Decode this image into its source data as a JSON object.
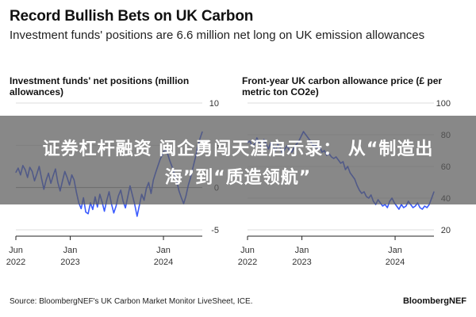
{
  "title": "Record Bullish Bets on UK Carbon",
  "subtitle": "Investment funds' positions are 6.6 million net long on UK emission allowances",
  "source": "Source: BloombergNEF's UK Carbon Market Monitor LiveSheet, ICE.",
  "brand": "BloombergNEF",
  "banner": {
    "line1": "证券杠杆融资 闽企勇闯天涯启示录： 从“制造出",
    "line2": "海”到“质造领航”"
  },
  "colors": {
    "line": "#3b5bff",
    "axis": "#222222",
    "grid": "#dddddd",
    "zero": "#999999",
    "banner": "#5a5a5a"
  },
  "chart_data": [
    {
      "type": "line",
      "title": "Investment funds' net positions (million allowances)",
      "ylim": [
        -5,
        10
      ],
      "yticks": [
        10,
        5,
        0,
        -5
      ],
      "xticks": [
        {
          "t": 0,
          "lines": [
            "Jun",
            "2022"
          ]
        },
        {
          "t": 7,
          "lines": [
            "Jan",
            "2023"
          ]
        },
        {
          "t": 19,
          "lines": [
            "Jan",
            "2024"
          ]
        }
      ],
      "x": [
        0,
        0.3,
        0.6,
        0.9,
        1.2,
        1.5,
        1.8,
        2.1,
        2.4,
        2.7,
        3,
        3.3,
        3.6,
        3.9,
        4.2,
        4.5,
        4.8,
        5.1,
        5.4,
        5.7,
        6,
        6.3,
        6.6,
        6.9,
        7.2,
        7.5,
        7.8,
        8.1,
        8.4,
        8.7,
        9,
        9.3,
        9.6,
        9.9,
        10.2,
        10.5,
        10.8,
        11.1,
        11.4,
        11.7,
        12,
        12.3,
        12.6,
        12.9,
        13.2,
        13.5,
        13.8,
        14.1,
        14.4,
        14.7,
        15,
        15.3,
        15.6,
        15.9,
        16.2,
        16.5,
        16.8,
        17.1,
        17.4,
        17.7,
        18,
        18.3,
        18.6,
        18.9,
        19.2,
        19.5,
        19.8,
        20.1,
        20.4,
        20.7,
        21,
        21.3,
        21.6,
        21.9,
        22.2,
        22.5,
        22.8,
        23.1,
        23.4,
        23.7,
        24
      ],
      "values": [
        1.8,
        2.3,
        1.5,
        2.6,
        2.1,
        1.2,
        2.4,
        1.9,
        0.8,
        1.6,
        2.5,
        1.1,
        -0.2,
        0.9,
        1.7,
        0.5,
        1.4,
        2.2,
        0.6,
        -0.4,
        0.8,
        1.9,
        1.2,
        0.3,
        1.5,
        0.9,
        -0.6,
        -1.8,
        -2.5,
        -1.2,
        -2.9,
        -3.1,
        -1.8,
        -2.6,
        -1.1,
        -2.3,
        -0.8,
        -1.7,
        -2.8,
        -1.5,
        -0.5,
        -1.9,
        -3.0,
        -2.2,
        -1.0,
        -0.3,
        -1.6,
        -2.4,
        -1.1,
        0.2,
        -0.9,
        -2.0,
        -3.4,
        -2.1,
        -0.8,
        -1.5,
        -0.1,
        0.6,
        -0.7,
        0.9,
        1.8,
        2.6,
        3.4,
        3.9,
        4.6,
        4.1,
        3.2,
        2.5,
        1.6,
        0.8,
        -0.4,
        -1.2,
        -1.9,
        -1.0,
        0.3,
        1.2,
        2.4,
        3.5,
        4.8,
        5.8,
        6.6
      ]
    },
    {
      "type": "line",
      "title": "Front-year UK carbon allowance price (£ per metric ton CO2e)",
      "ylim": [
        20,
        100
      ],
      "yticks": [
        100,
        80,
        60,
        40,
        20
      ],
      "xticks": [
        {
          "t": 0,
          "lines": [
            "Jun",
            "2022"
          ]
        },
        {
          "t": 7,
          "lines": [
            "Jan",
            "2023"
          ]
        },
        {
          "t": 19,
          "lines": [
            "Jan",
            "2024"
          ]
        }
      ],
      "x": [
        0,
        0.3,
        0.6,
        0.9,
        1.2,
        1.5,
        1.8,
        2.1,
        2.4,
        2.7,
        3,
        3.3,
        3.6,
        3.9,
        4.2,
        4.5,
        4.8,
        5.1,
        5.4,
        5.7,
        6,
        6.3,
        6.6,
        6.9,
        7.2,
        7.5,
        7.8,
        8.1,
        8.4,
        8.7,
        9,
        9.3,
        9.6,
        9.9,
        10.2,
        10.5,
        10.8,
        11.1,
        11.4,
        11.7,
        12,
        12.3,
        12.6,
        12.9,
        13.2,
        13.5,
        13.8,
        14.1,
        14.4,
        14.7,
        15,
        15.3,
        15.6,
        15.9,
        16.2,
        16.5,
        16.8,
        17.1,
        17.4,
        17.7,
        18,
        18.3,
        18.6,
        18.9,
        19.2,
        19.5,
        19.8,
        20.1,
        20.4,
        20.7,
        21,
        21.3,
        21.6,
        21.9,
        22.2,
        22.5,
        22.8,
        23.1,
        23.4,
        23.7,
        24
      ],
      "values": [
        75,
        76,
        73,
        74,
        78,
        75,
        72,
        77,
        74,
        71,
        75,
        73,
        70,
        74,
        72,
        68,
        71,
        73,
        70,
        69,
        72,
        74,
        76,
        79,
        82,
        80,
        78,
        76,
        73,
        74,
        71,
        72,
        69,
        70,
        67,
        68,
        66,
        65,
        66,
        64,
        62,
        63,
        58,
        60,
        56,
        54,
        52,
        48,
        45,
        43,
        44,
        41,
        40,
        42,
        38,
        36,
        39,
        37,
        35,
        36,
        34,
        38,
        40,
        37,
        35,
        33,
        36,
        34,
        35,
        38,
        36,
        34,
        35,
        37,
        34,
        33,
        35,
        34,
        36,
        40,
        44
      ]
    }
  ]
}
